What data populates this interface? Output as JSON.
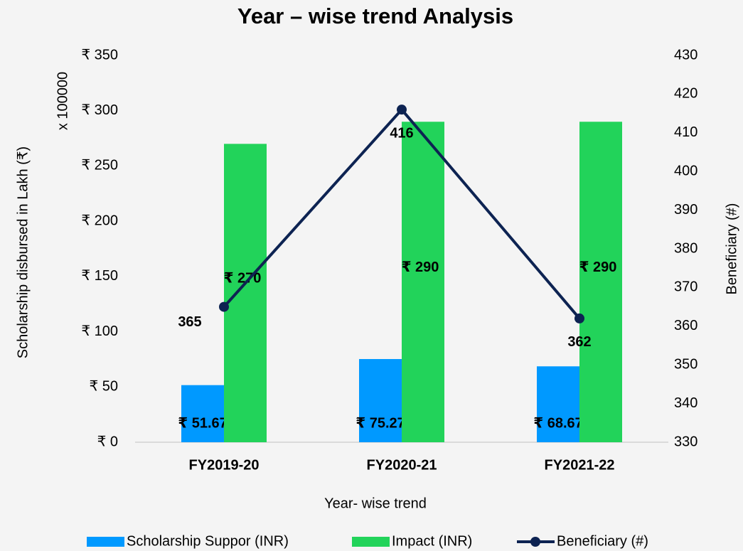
{
  "chart_data": {
    "type": "bar",
    "title": "Year – wise trend Analysis",
    "y_label": "Scholarship disbursed  in Lakh (₹)",
    "y_annotation": "x 100000",
    "y2_label": "Beneficiary (#)",
    "x_label": "Year- wise trend",
    "categories": [
      "FY2019-20",
      "FY2020-21",
      "FY2021-22"
    ],
    "series": [
      {
        "name": "Scholarship Suppor (INR)",
        "type": "bar",
        "color": "#0099ff",
        "values": [
          51.67,
          75.27,
          68.67
        ],
        "value_labels": [
          "₹ 51.67",
          "₹ 75.27",
          "₹ 68.67"
        ]
      },
      {
        "name": "Impact (INR)",
        "type": "bar",
        "color": "#22d35a",
        "values": [
          270,
          290,
          290
        ],
        "value_labels": [
          "₹ 270",
          "₹ 290",
          "₹ 290"
        ]
      },
      {
        "name": "Beneficiary (#)",
        "type": "line",
        "axis": "y2",
        "color": "#0d2352",
        "values": [
          365,
          416,
          362
        ]
      }
    ],
    "ylim": [
      0,
      350
    ],
    "yticks": [
      {
        "value": 0,
        "label": "₹ 0"
      },
      {
        "value": 50,
        "label": "₹ 50"
      },
      {
        "value": 100,
        "label": "₹ 100"
      },
      {
        "value": 150,
        "label": "₹ 150"
      },
      {
        "value": 200,
        "label": "₹ 200"
      },
      {
        "value": 250,
        "label": "₹ 250"
      },
      {
        "value": 300,
        "label": "₹ 300"
      },
      {
        "value": 350,
        "label": "₹ 350"
      }
    ],
    "y2lim": [
      330,
      430
    ],
    "y2ticks": [
      330,
      340,
      350,
      360,
      370,
      380,
      390,
      400,
      410,
      420,
      430
    ],
    "grid": false,
    "legend": "bottom"
  }
}
